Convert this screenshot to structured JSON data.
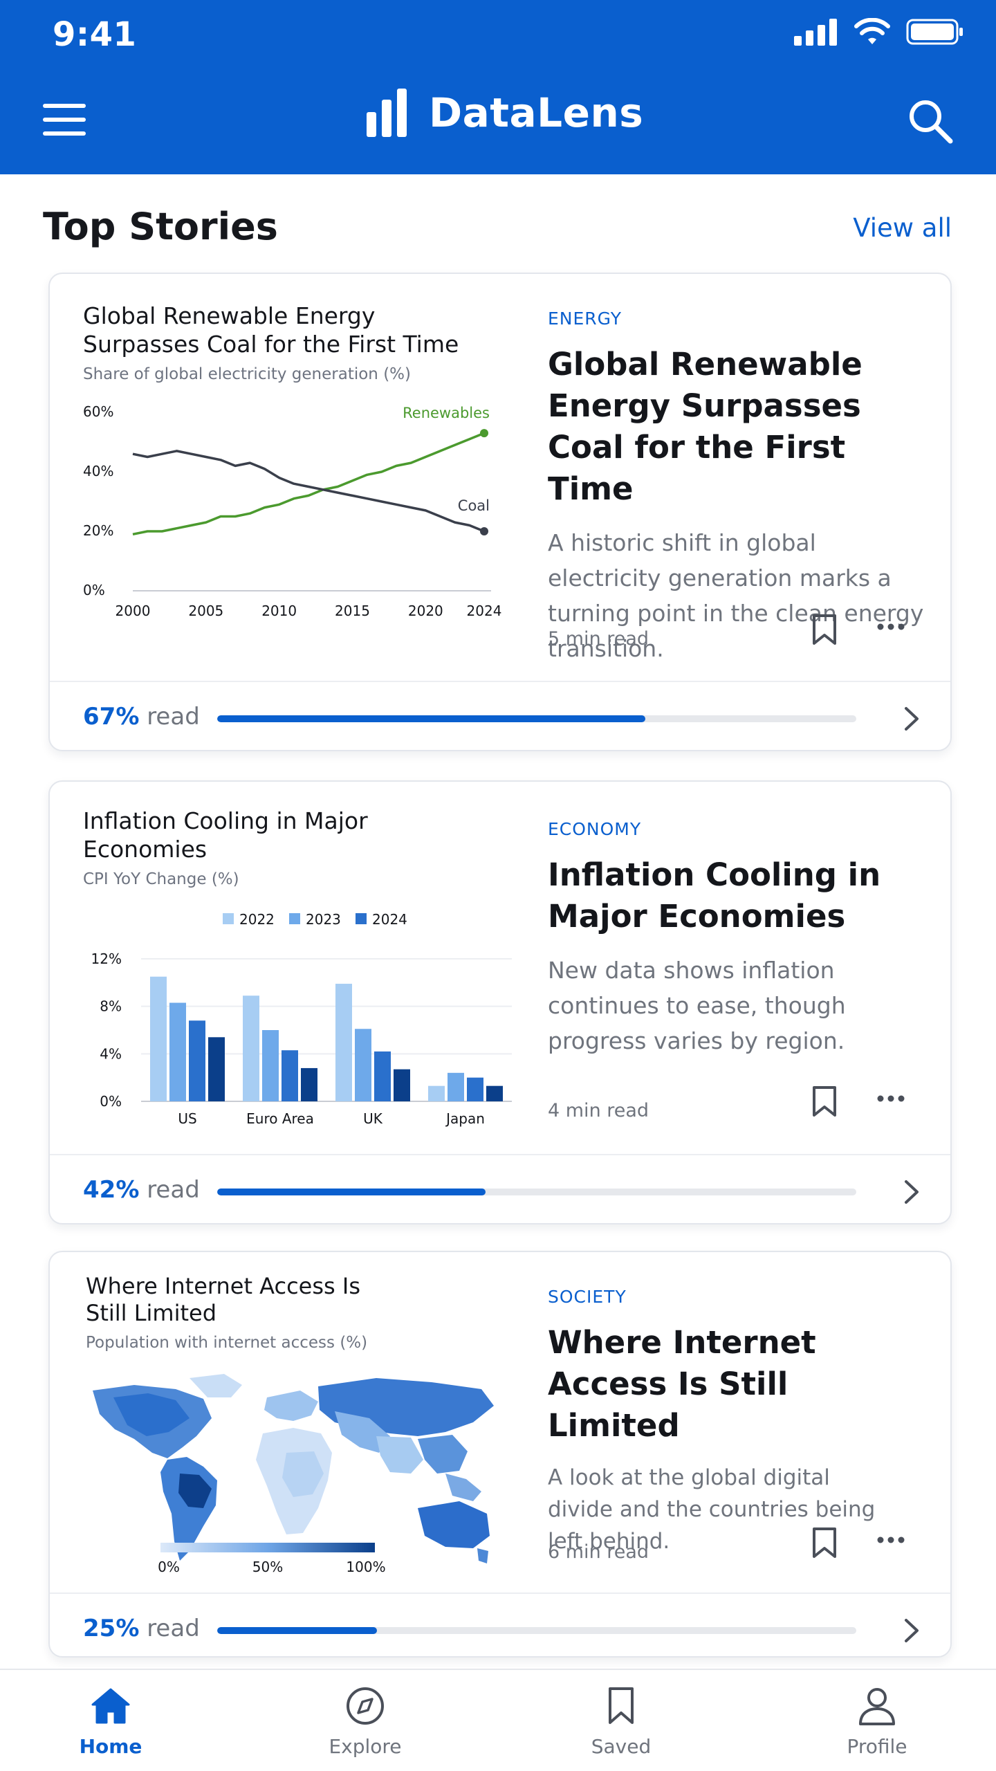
{
  "status": {
    "time": "9:41"
  },
  "header": {
    "title": "DataLens"
  },
  "section": {
    "title": "Top Stories",
    "view_all": "View all"
  },
  "colors": {
    "brand": "#0a5fce",
    "renewables": "#4b9a2e",
    "coal": "#3a3f4b"
  },
  "stories": [
    {
      "category": "ENERGY",
      "headline": "Global Renewable Energy Surpasses Coal for the First Time",
      "summary": "A historic shift in global electricity generation marks a turning point in the clean energy transition.",
      "read_time": "5 min read",
      "progress": {
        "pct": "67%",
        "label": "read",
        "value": 0.67
      },
      "chart": {
        "title": "Global Renewable Energy Surpasses Coal for the First Time",
        "subtitle": "Share of global electricity generation (%)"
      }
    },
    {
      "category": "ECONOMY",
      "headline": "Inflation Cooling in Major Economies",
      "summary": "New data shows inflation continues to ease, though progress varies by region.",
      "read_time": "4 min read",
      "progress": {
        "pct": "42%",
        "label": "read",
        "value": 0.42
      },
      "chart": {
        "title": "Inflation Cooling in Major Economies",
        "subtitle": "CPI YoY Change (%)"
      }
    },
    {
      "category": "SOCIETY",
      "headline": "Where Internet Access Is Still Limited",
      "summary": "A look at the global digital divide and the countries being left behind.",
      "read_time": "6 min read",
      "progress": {
        "pct": "25%",
        "label": "read",
        "value": 0.25
      },
      "chart": {
        "title": "Where Internet Access Is Still Limited",
        "subtitle": "Population with internet access (%)",
        "legend_ticks": [
          "0%",
          "50%",
          "100%"
        ]
      }
    }
  ],
  "chart_data": [
    {
      "type": "line",
      "title": "Global Renewable Energy Surpasses Coal for the First Time",
      "subtitle": "Share of global electricity generation (%)",
      "x": [
        2000,
        2001,
        2002,
        2003,
        2004,
        2005,
        2006,
        2007,
        2008,
        2009,
        2010,
        2011,
        2012,
        2013,
        2014,
        2015,
        2016,
        2017,
        2018,
        2019,
        2020,
        2021,
        2022,
        2023,
        2024
      ],
      "xticks": [
        "2000",
        "2005",
        "2010",
        "2015",
        "2020",
        "2024"
      ],
      "yticks": [
        "0%",
        "20%",
        "40%",
        "60%"
      ],
      "ylim": [
        0,
        60
      ],
      "series": [
        {
          "name": "Renewables",
          "values": [
            19,
            20,
            20,
            21,
            22,
            23,
            25,
            25,
            26,
            28,
            29,
            31,
            32,
            34,
            35,
            37,
            39,
            40,
            42,
            43,
            45,
            47,
            49,
            51,
            53
          ]
        },
        {
          "name": "Coal",
          "values": [
            46,
            45,
            46,
            47,
            46,
            45,
            44,
            42,
            43,
            41,
            38,
            36,
            35,
            34,
            33,
            32,
            31,
            30,
            29,
            28,
            27,
            25,
            23,
            22,
            20
          ]
        }
      ]
    },
    {
      "type": "bar",
      "title": "Inflation Cooling in Major Economies",
      "subtitle": "CPI YoY Change (%)",
      "categories": [
        "US",
        "Euro Area",
        "UK",
        "Japan"
      ],
      "yticks": [
        "0%",
        "4%",
        "8%",
        "12%"
      ],
      "ylim": [
        0,
        12
      ],
      "series": [
        {
          "name": "2022",
          "color": "#a7cdf3",
          "values": [
            10.5,
            8.9,
            9.9,
            1.3
          ]
        },
        {
          "name": "2023",
          "color": "#6ea9ea",
          "values": [
            8.3,
            6.0,
            6.1,
            2.4
          ]
        },
        {
          "name": "2024",
          "color": "#2a70cc",
          "values": [
            6.8,
            4.3,
            4.2,
            2.0
          ]
        },
        {
          "name": "",
          "color": "#0b3f8a",
          "values": [
            5.4,
            2.8,
            2.7,
            1.3
          ]
        }
      ]
    }
  ],
  "bottom_nav": [
    {
      "label": "Home",
      "icon": "home-icon"
    },
    {
      "label": "Explore",
      "icon": "compass-icon"
    },
    {
      "label": "Saved",
      "icon": "bookmark-icon"
    },
    {
      "label": "Profile",
      "icon": "user-icon"
    }
  ]
}
